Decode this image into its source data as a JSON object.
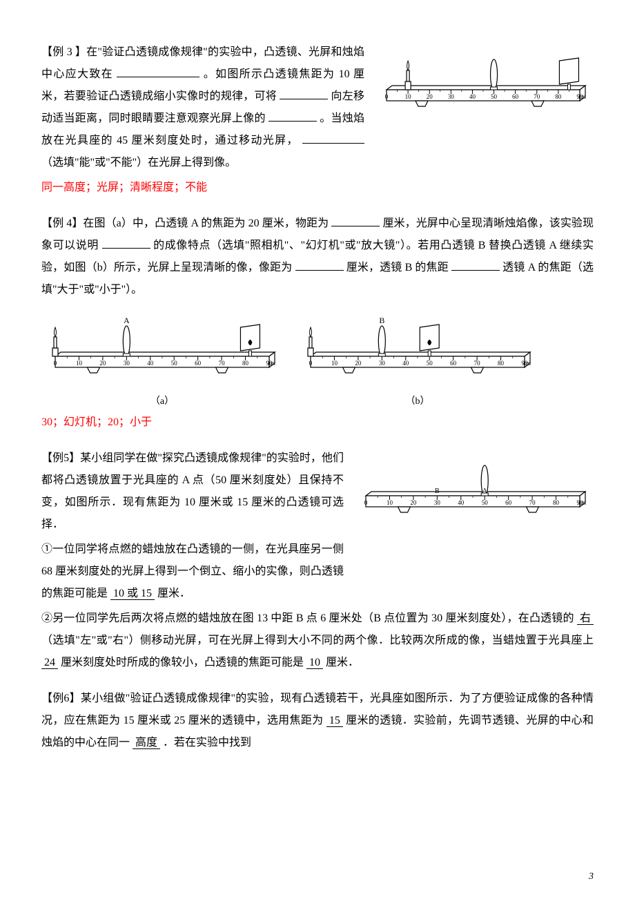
{
  "ex3": {
    "prefix": "【例 3 】在\"验证凸透镜成像规律\"的实验中，凸透镜、光屏和烛焰中心应大致在",
    "t1": "。如图所示凸透镜焦距为 10 厘米，若要验证凸透镜成缩小实像时的规律，可将",
    "t2": "向左移动适当距离，同时眼睛要注意观察光屏上像的",
    "t3": "。当烛焰放在光具座的 45 厘米刻度处时，通过移动光屏，",
    "t4": "（选填\"能\"或\"不能\"）在光屏上得到像。",
    "answer": "同一高度；光屏；清晰程度；不能"
  },
  "ex4": {
    "prefix": "【例 4】在图（a）中，凸透镜 A 的焦距为 20 厘米，物距为",
    "t1": "厘米，光屏中心呈现清晰烛焰像，该实验现象可以说明",
    "t2": "的成像特点（选填\"照相机\"、\"幻灯机\"或\"放大镜\"）。若用凸透镜 B 替换凸透镜 A 继续实验，如图（b）所示，光屏上呈现清晰的像，像距为",
    "t3": "厘米，透镜 B 的焦距",
    "t4": "透镜 A 的焦距（选填\"大于\"或\"小于\"）。",
    "answer": "30；幻灯机；20；小于",
    "capA": "（a）",
    "capB": "（b）"
  },
  "ex5": {
    "prefix": "【例5】某小组同学在做\"探究凸透镜成像规律\"的实验时，他们都将凸透镜放置于光具座的 A 点（50 厘米刻度处）且保持不变，如图所示．现有焦距为 10 厘米或 15 厘米的凸透镜可选择．",
    "l1a": "①一位同学将点燃的蜡烛放在凸透镜的一侧，在光具座另一侧 68 厘米刻度处的光屏上得到一个倒立、缩小的实像，则凸透镜的焦距可能是",
    "a1": "10 或 15",
    "l1b": "厘米．",
    "l2a": "②另一位同学先后两次将点燃的蜡烛放在图 13 中距 B 点 6 厘米处（B 点位置为 30 厘米刻度处），在凸透镜的",
    "a2": "右",
    "l2b": "（选填\"左\"或\"右\"）侧移动光屏，可在光屏上得到大小不同的两个像．比较两次所成的像，当蜡烛置于光具座上",
    "a3": "24",
    "l2c": "厘米刻度处时所成的像较小，凸透镜的焦距可能是",
    "a4": "10",
    "l2d": "厘米．"
  },
  "ex6": {
    "prefix": "【例6】某小组做\"验证凸透镜成像规律\"的实验，现有凸透镜若干，光具座如图所示．为了方便验证成像的各种情况，应在焦距为 15 厘米或 25 厘米的透镜中，选用焦距为",
    "a1": "15",
    "t1": "厘米的透镜．实验前，先调节透镜、光屏的中心和烛焰的中心在同一",
    "a2": "高度",
    "t2": "．若在实验中找到"
  },
  "page_number": "3",
  "bench": {
    "ticks_cm": [
      "0",
      "10",
      "20",
      "30",
      "40",
      "50",
      "60",
      "70",
      "80",
      "90",
      "cm"
    ],
    "ticks_full": [
      "0",
      "10",
      "20",
      "30",
      "40",
      "50",
      "60",
      "70",
      "80",
      "90",
      "cm"
    ],
    "lineColor": "#000000"
  }
}
